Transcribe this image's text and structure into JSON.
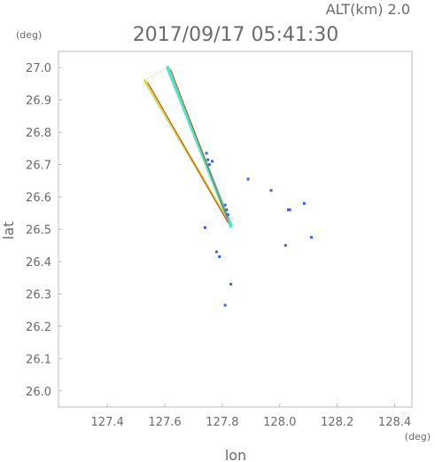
{
  "chart_data": {
    "type": "scatter",
    "header_right": "ALT(km)  2.0",
    "title": "2017/09/17  05:41:30",
    "y_unit": "(deg)",
    "x_unit": "(deg)",
    "xlabel": "lon",
    "ylabel": "lat",
    "xlim": [
      127.23,
      128.46
    ],
    "ylim": [
      25.95,
      27.05
    ],
    "xticks": [
      "127.4",
      "127.6",
      "127.8",
      "128.0",
      "128.2",
      "128.4"
    ],
    "yticks": [
      "26.0",
      "26.1",
      "26.2",
      "26.3",
      "26.4",
      "26.5",
      "26.6",
      "26.7",
      "26.8",
      "26.9",
      "27.0"
    ],
    "series": [
      {
        "color": "#c6e04a",
        "kind": "band",
        "x": [
          127.53,
          127.83
        ],
        "y": [
          26.96,
          26.51
        ],
        "width": 3
      },
      {
        "color": "#44e6c8",
        "kind": "band",
        "x": [
          127.61,
          127.83
        ],
        "y": [
          27.0,
          26.51
        ],
        "width": 4
      },
      {
        "color": "#e03a1a",
        "kind": "line",
        "x": [
          127.54,
          127.82
        ],
        "y": [
          26.955,
          26.52
        ]
      },
      {
        "color": "#e03a1a",
        "kind": "line",
        "x": [
          127.62,
          127.82
        ],
        "y": [
          26.995,
          26.53
        ]
      },
      {
        "color": "#8ad64a",
        "kind": "dots",
        "x": [
          127.53,
          127.61
        ],
        "y": [
          26.96,
          27.0
        ]
      },
      {
        "color": "#3366ee",
        "kind": "points",
        "x": [
          127.745,
          127.75,
          127.755,
          127.81,
          127.815,
          127.82,
          127.765,
          127.89,
          127.97,
          128.03,
          128.035,
          128.085,
          127.78,
          127.79,
          127.81,
          127.83,
          127.74,
          128.11,
          128.02
        ],
        "y": [
          26.735,
          26.715,
          26.7,
          26.575,
          26.56,
          26.545,
          26.71,
          26.655,
          26.62,
          26.56,
          26.56,
          26.58,
          26.43,
          26.415,
          26.265,
          26.33,
          26.505,
          26.475,
          26.45
        ]
      }
    ]
  }
}
